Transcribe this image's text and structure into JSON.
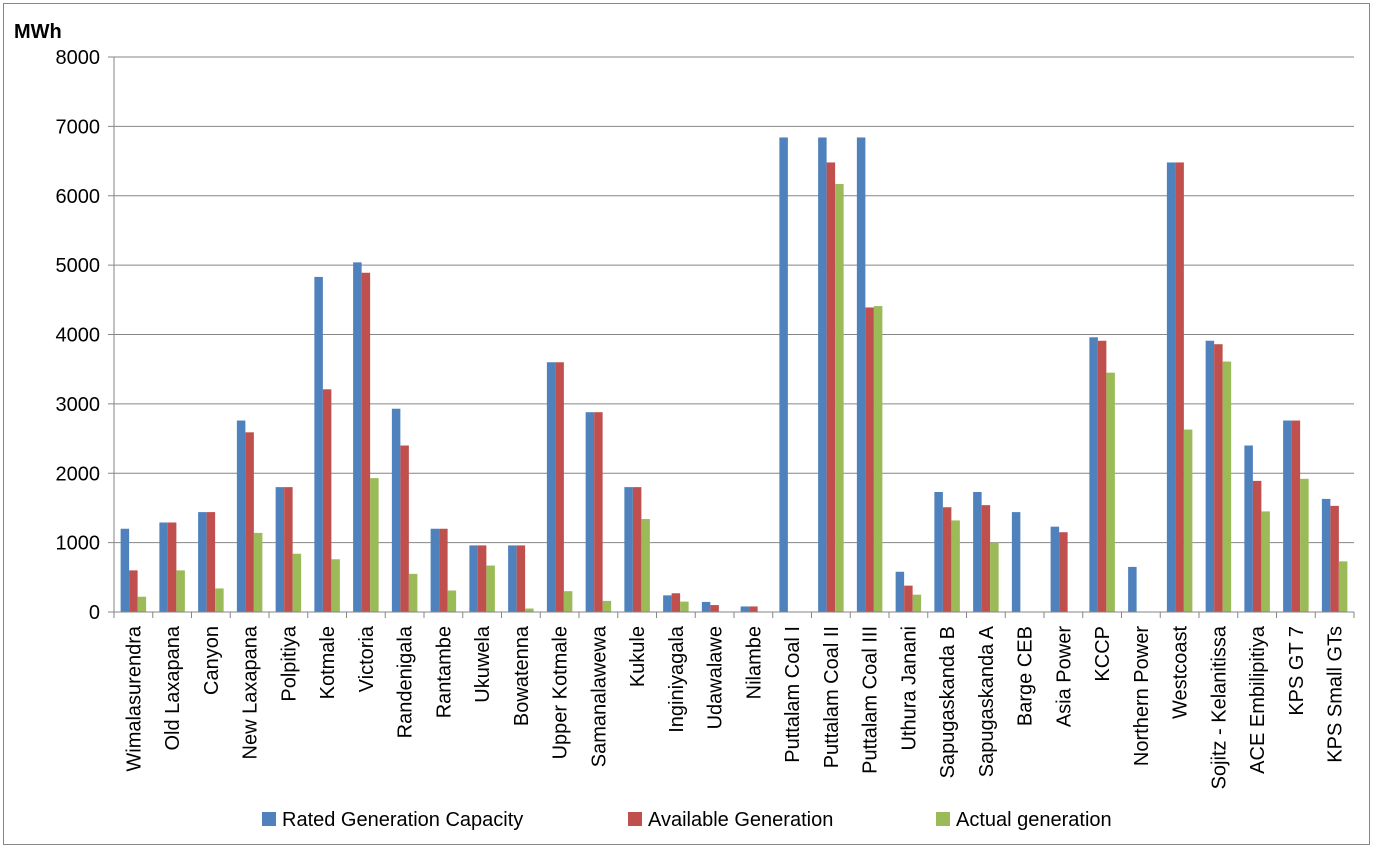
{
  "chart_data": {
    "type": "bar",
    "title": "",
    "ylabel": "MWh",
    "xlabel": "",
    "ylim": [
      0,
      8000
    ],
    "yticks": [
      0,
      1000,
      2000,
      3000,
      4000,
      5000,
      6000,
      7000,
      8000
    ],
    "grid": true,
    "legend_position": "bottom",
    "categories": [
      "Wimalasurendra",
      "Old Laxapana",
      "Canyon",
      "New Laxapana",
      "Polpitiya",
      "Kotmale",
      "Victoria",
      "Randenigala",
      "Rantambe",
      "Ukuwela",
      "Bowatenna",
      "Upper Kotmale",
      "Samanalawewa",
      "Kukule",
      "Inginiyagala",
      "Udawalawe",
      "Nilambe",
      "Puttalam Coal I",
      "Puttalam Coal II",
      "Puttalam Coal III",
      "Uthura Janani",
      "Sapugaskanda B",
      "Sapugaskanda A",
      "Barge CEB",
      "Asia Power",
      "KCCP",
      "Northern Power",
      "Westcoast",
      "Sojitz - Kelanitissa",
      "ACE Embilipitiya",
      "KPS GT 7",
      "KPS Small GTs"
    ],
    "series": [
      {
        "name": "Rated Generation Capacity",
        "color": "#4F81BD",
        "values": [
          1200,
          1290,
          1440,
          2760,
          1800,
          4830,
          5040,
          2930,
          1200,
          960,
          960,
          3600,
          2880,
          1800,
          240,
          145,
          80,
          6840,
          6840,
          6840,
          580,
          1730,
          1730,
          1440,
          1230,
          3960,
          650,
          6480,
          3910,
          2400,
          2760,
          1630
        ]
      },
      {
        "name": "Available Generation",
        "color": "#C0504D",
        "values": [
          600,
          1290,
          1440,
          2590,
          1800,
          3210,
          4890,
          2400,
          1200,
          960,
          960,
          3600,
          2880,
          1800,
          270,
          100,
          80,
          0,
          6480,
          4390,
          380,
          1510,
          1540,
          0,
          1150,
          3910,
          0,
          6480,
          3860,
          1890,
          2760,
          1530
        ]
      },
      {
        "name": "Actual generation",
        "color": "#9BBB59",
        "values": [
          220,
          600,
          340,
          1140,
          840,
          760,
          1930,
          550,
          310,
          670,
          50,
          300,
          160,
          1340,
          150,
          0,
          0,
          0,
          6170,
          4410,
          250,
          1320,
          1000,
          0,
          0,
          3450,
          0,
          2630,
          3610,
          1450,
          1920,
          730
        ]
      }
    ]
  }
}
